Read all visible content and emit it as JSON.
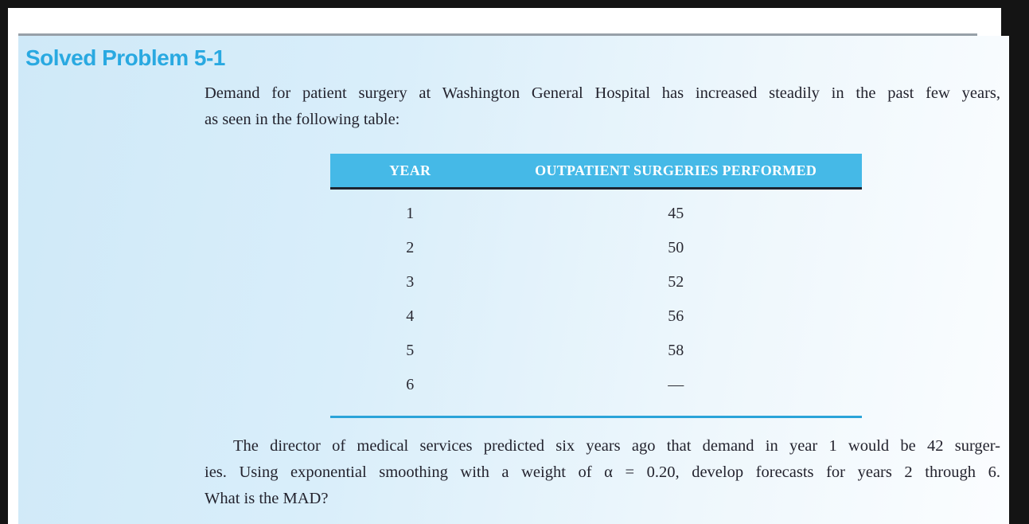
{
  "header": {
    "title": "Solved Problem 5-1"
  },
  "intro": {
    "line1": "Demand for patient surgery at Washington General Hospital has increased steadily in the past few years,",
    "line2": "as seen in the following table:"
  },
  "table": {
    "col_headers": [
      "YEAR",
      "OUTPATIENT SURGERIES PERFORMED"
    ],
    "rows": [
      {
        "year": "1",
        "value": "45"
      },
      {
        "year": "2",
        "value": "50"
      },
      {
        "year": "3",
        "value": "52"
      },
      {
        "year": "4",
        "value": "56"
      },
      {
        "year": "5",
        "value": "58"
      },
      {
        "year": "6",
        "value": "—"
      }
    ]
  },
  "question": {
    "line1": "The director of medical services predicted six years ago that demand in year 1 would be 42 surger-",
    "line2": "ies. Using exponential smoothing with a weight of α = 0.20, develop forecasts for years 2 through 6.",
    "line3": "What is the MAD?"
  },
  "colors": {
    "title_accent": "#29a9e1",
    "table_header_bg": "#45b9e7",
    "table_header_text": "#ffffff",
    "table_bottom_rule": "#2ba4d9",
    "panel_bg_left": "#cfe9f8",
    "panel_bg_right": "#fbfdff",
    "frame_border": "#141414",
    "body_text": "#23232e",
    "top_rule": "#97a0a8"
  }
}
